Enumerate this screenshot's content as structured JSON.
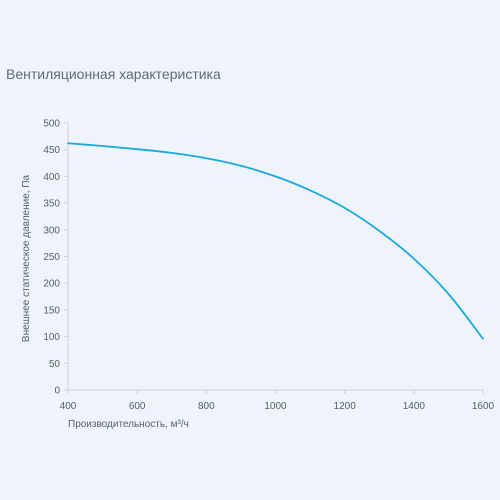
{
  "title": "Вентиляционная характеристика",
  "colors": {
    "background": "#eef4fa",
    "line": "#1ba8dc",
    "axis": "#c9d2da",
    "text": "#55606a"
  },
  "chart_data": {
    "type": "line",
    "title": "Вентиляционная характеристика",
    "xlabel": "Производительность, м³/ч",
    "ylabel": "Внешнее статическое давление, Па",
    "xlim": [
      400,
      1600
    ],
    "ylim": [
      0,
      500
    ],
    "x_ticks": [
      400,
      600,
      800,
      1000,
      1200,
      1400,
      1600
    ],
    "y_ticks": [
      0,
      50,
      100,
      150,
      200,
      250,
      300,
      350,
      400,
      450,
      500
    ],
    "grid": false,
    "legend": "none",
    "series": [
      {
        "x": [
          400,
          500,
          600,
          700,
          800,
          900,
          1000,
          1100,
          1200,
          1300,
          1400,
          1500,
          1600
        ],
        "y": [
          462,
          457,
          451,
          444,
          434,
          420,
          400,
          374,
          341,
          298,
          246,
          180,
          96
        ]
      }
    ]
  }
}
